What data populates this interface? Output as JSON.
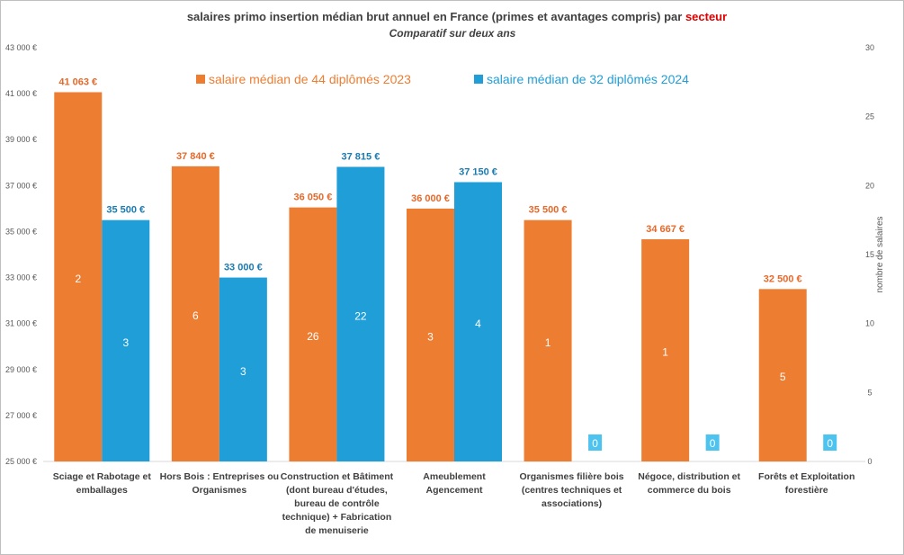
{
  "chart_data": {
    "type": "bar",
    "title_prefix": "salaires primo insertion médian brut annuel en France (primes et avantages compris) par ",
    "title_highlight": "secteur",
    "subtitle": "Comparatif sur deux ans",
    "ylabel_right": "nombre de salaires",
    "ylim": [
      25000,
      43000
    ],
    "y_ticks": [
      "25 000 €",
      "27 000 €",
      "29 000 €",
      "31 000 €",
      "33 000 €",
      "35 000 €",
      "37 000 €",
      "39 000 €",
      "41 000 €",
      "43 000 €"
    ],
    "y2lim": [
      0,
      30
    ],
    "y2_ticks": [
      "0",
      "5",
      "10",
      "15",
      "20",
      "25",
      "30"
    ],
    "categories": [
      [
        "Sciage et Rabotage et",
        "emballages"
      ],
      [
        "Hors Bois : Entreprises ou",
        "Organismes"
      ],
      [
        "Construction et Bâtiment",
        "(dont bureau d'études,",
        "bureau de contrôle",
        "technique) + Fabrication",
        "de menuiserie"
      ],
      [
        "Ameublement",
        "Agencement"
      ],
      [
        "Organismes filière bois",
        "(centres techniques et",
        "associations)"
      ],
      [
        "Négoce, distribution et",
        "commerce du bois"
      ],
      [
        "Forêts et Exploitation",
        "forestière"
      ]
    ],
    "series": [
      {
        "name": "salaire médian de 44 diplômés 2023",
        "color": "#ED7D31",
        "values": [
          41063,
          37840,
          36050,
          36000,
          35500,
          34667,
          32500
        ],
        "labels": [
          "41 063 €",
          "37 840 €",
          "36 050 €",
          "36 000 €",
          "35 500 €",
          "34 667 €",
          "32 500 €"
        ],
        "counts": [
          "2",
          "6",
          "26",
          "3",
          "1",
          "1",
          "5"
        ]
      },
      {
        "name": "salaire médian de 32 diplômés 2024",
        "color": "#1F9ED8",
        "values": [
          35500,
          33000,
          37815,
          37150,
          null,
          null,
          null
        ],
        "labels": [
          "35 500 €",
          "33 000 €",
          "37 815 €",
          "37 150 €",
          "",
          "",
          ""
        ],
        "counts": [
          "3",
          "3",
          "22",
          "4",
          "0",
          "0",
          "0"
        ]
      }
    ],
    "legend": "top",
    "grid": false
  }
}
